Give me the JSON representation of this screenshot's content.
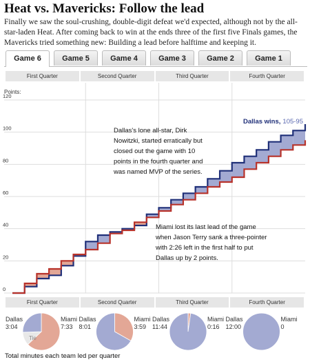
{
  "title": "Heat vs. Mavericks: Follow the lead",
  "intro": "Finally we saw the soul-crushing, double-digit defeat we'd expected, although not by the all-star-laden Heat. After coming back to win at the ends three of the first five Finals games, the Mavericks tried something new: Building a lead before halftime and keeping it.",
  "tabs": [
    "Game 6",
    "Game 5",
    "Game 4",
    "Game 3",
    "Game 2",
    "Game 1"
  ],
  "quarters": [
    "First Quarter",
    "Second Quarter",
    "Third Quarter",
    "Fourth Quarter"
  ],
  "chart_data": [
    {
      "type": "line",
      "ylabel": "Points:",
      "x": [
        0,
        2,
        4,
        6,
        8,
        10,
        12,
        14,
        16,
        18,
        20,
        22,
        24,
        26,
        28,
        30,
        32,
        34,
        36,
        38,
        40,
        42,
        44,
        46,
        48
      ],
      "xlim": [
        0,
        48
      ],
      "ylim": [
        0,
        120
      ],
      "yticks": [
        0,
        20,
        40,
        60,
        80,
        100,
        120
      ],
      "grid": true,
      "series": [
        {
          "name": "Dallas",
          "color": "#1f2f78",
          "fill": "#a3aad2",
          "values": [
            0,
            4,
            9,
            11,
            17,
            23,
            32,
            36,
            38,
            40,
            42,
            49,
            53,
            58,
            62,
            66,
            71,
            76,
            81,
            85,
            89,
            94,
            98,
            101,
            105
          ]
        },
        {
          "name": "Miami",
          "color": "#b8322a",
          "fill": "#e3a796",
          "values": [
            0,
            6,
            12,
            15,
            20,
            24,
            27,
            31,
            37,
            39,
            44,
            47,
            51,
            55,
            58,
            62,
            66,
            69,
            72,
            77,
            81,
            85,
            89,
            92,
            95
          ]
        }
      ],
      "winner_label": "Dallas wins,",
      "final_score": "105-95",
      "annotations": [
        "Dallas's lone all-star, Dirk Nowitzki, started erratically but closed out the game with 10 points in the fourth quarter and was named MVP of the series.",
        "Miami lost its last lead of the game when Jason Terry sank a three-pointer with 2:26 left in the first half to put Dallas up by 2 points."
      ]
    },
    {
      "type": "pie",
      "caption": "Total minutes each team led per quarter",
      "series": [
        {
          "name": "Dallas",
          "color": "#a3aad2",
          "values": [
            184,
            481,
            704,
            720
          ],
          "value_labels": [
            "3:04",
            "8:01",
            "11:44",
            "12:00"
          ]
        },
        {
          "name": "Miami",
          "color": "#e3a796",
          "values": [
            453,
            239,
            16,
            0
          ],
          "value_labels": [
            "7:33",
            "3:59",
            "0:16",
            "0"
          ]
        },
        {
          "name": "Tie",
          "color": "#e8e8e8",
          "values": [
            83,
            0,
            0,
            0
          ]
        }
      ]
    }
  ]
}
